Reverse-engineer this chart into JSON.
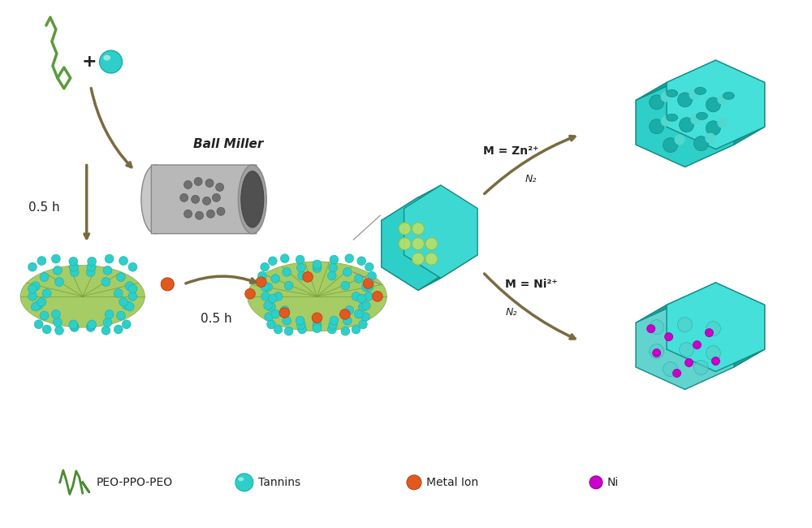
{
  "bg_color": "#ffffff",
  "teal_color": "#2ECFC8",
  "teal_dark": "#1AADA8",
  "teal_light": "#5DE0DA",
  "teal_very_light": "#A8EDEB",
  "green_color": "#5A9B3C",
  "green_light": "#B8E06A",
  "green_polymer": "#4A8C30",
  "gray_ball": "#888888",
  "gray_dark": "#666666",
  "gray_light": "#CCCCCC",
  "gray_cylinder": "#A0A0A0",
  "orange_color": "#E05A20",
  "magenta_color": "#CC00CC",
  "arrow_color": "#7A6A40",
  "text_color": "#222222",
  "title_fontsize": 12,
  "label_fontsize": 11,
  "legend_fontsize": 10,
  "peo_label": "PEO-PPO-PEO",
  "tannin_label": "Tannins",
  "metal_label": "Metal Ion",
  "ni_label": "Ni",
  "ball_miller_label": "Ball Miller",
  "time1_label": "0.5 h",
  "time2_label": "0.5 h",
  "zn_label": "M = Zn²⁺",
  "ni_label2": "M = Ni²⁺",
  "n2_label1": "N₂",
  "n2_label2": "N₂",
  "plus_label": "+"
}
